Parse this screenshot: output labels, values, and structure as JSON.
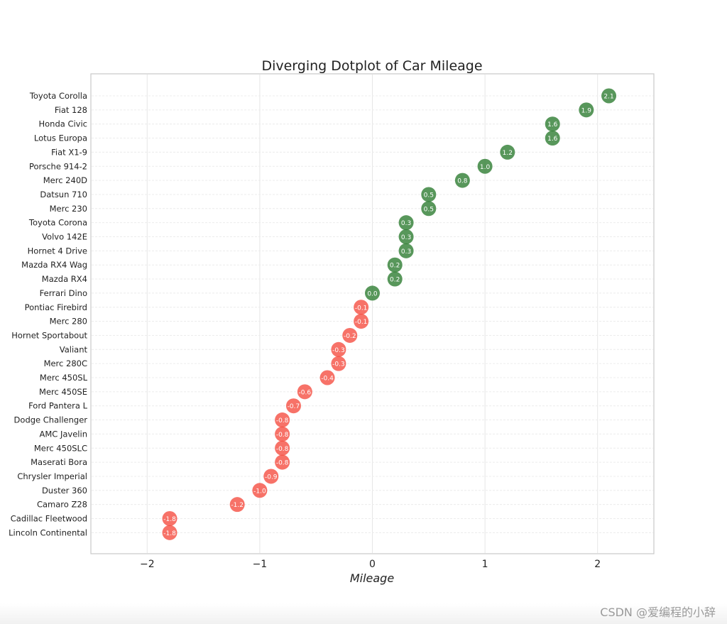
{
  "chart_data": {
    "type": "scatter",
    "title": "Diverging Dotplot of Car Mileage",
    "xlabel": "Mileage",
    "ylabel": "",
    "xlim": [
      -2.5,
      2.5
    ],
    "xticks": [
      -2,
      -1,
      0,
      1,
      2
    ],
    "xtick_labels": [
      "−2",
      "−1",
      "0",
      "1",
      "2"
    ],
    "grid": true,
    "positive_color": "#2e7d32",
    "negative_color": "#f44336",
    "points": [
      {
        "car": "Toyota Corolla",
        "value": 2.1,
        "label": "2.1"
      },
      {
        "car": "Fiat 128",
        "value": 1.9,
        "label": "1.9"
      },
      {
        "car": "Honda Civic",
        "value": 1.6,
        "label": "1.6"
      },
      {
        "car": "Lotus Europa",
        "value": 1.6,
        "label": "1.6"
      },
      {
        "car": "Fiat X1-9",
        "value": 1.2,
        "label": "1.2"
      },
      {
        "car": "Porsche 914-2",
        "value": 1.0,
        "label": "1.0"
      },
      {
        "car": "Merc 240D",
        "value": 0.8,
        "label": "0.8"
      },
      {
        "car": "Datsun 710",
        "value": 0.5,
        "label": "0.5"
      },
      {
        "car": "Merc 230",
        "value": 0.5,
        "label": "0.5"
      },
      {
        "car": "Toyota Corona",
        "value": 0.3,
        "label": "0.3"
      },
      {
        "car": "Volvo 142E",
        "value": 0.3,
        "label": "0.3"
      },
      {
        "car": "Hornet 4 Drive",
        "value": 0.3,
        "label": "0.3"
      },
      {
        "car": "Mazda RX4 Wag",
        "value": 0.2,
        "label": "0.2"
      },
      {
        "car": "Mazda RX4",
        "value": 0.2,
        "label": "0.2"
      },
      {
        "car": "Ferrari Dino",
        "value": 0.0,
        "label": "0.0"
      },
      {
        "car": "Pontiac Firebird",
        "value": -0.1,
        "label": "-0.1"
      },
      {
        "car": "Merc 280",
        "value": -0.1,
        "label": "-0.1"
      },
      {
        "car": "Hornet Sportabout",
        "value": -0.2,
        "label": "-0.2"
      },
      {
        "car": "Valiant",
        "value": -0.3,
        "label": "-0.3"
      },
      {
        "car": "Merc 280C",
        "value": -0.3,
        "label": "-0.3"
      },
      {
        "car": "Merc 450SL",
        "value": -0.4,
        "label": "-0.4"
      },
      {
        "car": "Merc 450SE",
        "value": -0.6,
        "label": "-0.6"
      },
      {
        "car": "Ford Pantera L",
        "value": -0.7,
        "label": "-0.7"
      },
      {
        "car": "Dodge Challenger",
        "value": -0.8,
        "label": "-0.8"
      },
      {
        "car": "AMC Javelin",
        "value": -0.8,
        "label": "-0.8"
      },
      {
        "car": "Merc 450SLC",
        "value": -0.8,
        "label": "-0.8"
      },
      {
        "car": "Maserati Bora",
        "value": -0.8,
        "label": "-0.8"
      },
      {
        "car": "Chrysler Imperial",
        "value": -0.9,
        "label": "-0.9"
      },
      {
        "car": "Duster 360",
        "value": -1.0,
        "label": "-1.0"
      },
      {
        "car": "Camaro Z28",
        "value": -1.2,
        "label": "-1.2"
      },
      {
        "car": "Cadillac Fleetwood",
        "value": -1.8,
        "label": "-1.8"
      },
      {
        "car": "Lincoln Continental",
        "value": -1.8,
        "label": "-1.8"
      }
    ]
  },
  "watermark": "CSDN @爱编程的小辞"
}
